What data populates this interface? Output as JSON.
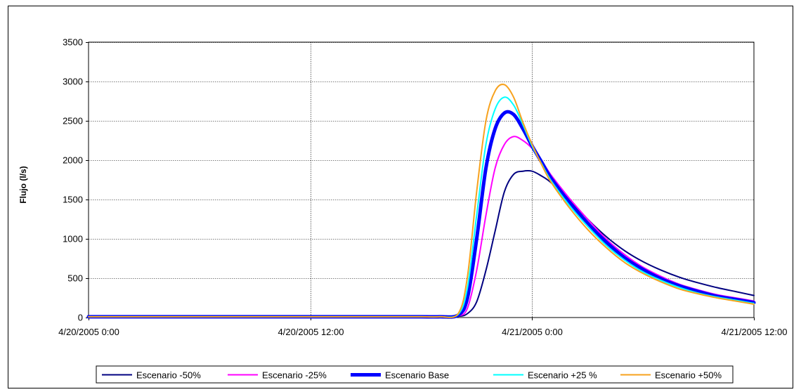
{
  "chart_data": {
    "type": "line",
    "title": "",
    "xlabel": "",
    "ylabel": "Flujo (l/s)",
    "ylim": [
      0,
      3500
    ],
    "yticks": [
      "0",
      "500",
      "1000",
      "1500",
      "2000",
      "2500",
      "3000",
      "3500"
    ],
    "xlim": [
      "4/20/2005 0:00",
      "4/21/2005 12:00"
    ],
    "xticks": [
      "4/20/2005 0:00",
      "4/20/2005 12:00",
      "4/21/2005 0:00",
      "4/21/2005 12:00"
    ],
    "grid": true,
    "legend_position": "bottom",
    "x": [
      "4/20/2005 0:00",
      "4/20/2005 16:00",
      "4/20/2005 18:00",
      "4/20/2005 19:00",
      "4/20/2005 20:00",
      "4/20/2005 20:30",
      "4/20/2005 21:00",
      "4/20/2005 21:30",
      "4/20/2005 22:00",
      "4/20/2005 22:30",
      "4/20/2005 23:00",
      "4/20/2005 23:30",
      "4/21/2005 0:00",
      "4/21/2005 0:30",
      "4/21/2005 1:00",
      "4/21/2005 2:00",
      "4/21/2005 3:00",
      "4/21/2005 4:00",
      "4/21/2005 5:00",
      "4/21/2005 6:00",
      "4/21/2005 7:00",
      "4/21/2005 8:00",
      "4/21/2005 9:00",
      "4/21/2005 10:00",
      "4/21/2005 11:00",
      "4/21/2005 12:00"
    ],
    "series": [
      {
        "name": "Escenario -50%",
        "color": "#000080",
        "width": 2,
        "values": [
          10,
          10,
          10,
          10,
          15,
          50,
          200,
          600,
          1100,
          1600,
          1820,
          1860,
          1860,
          1800,
          1720,
          1500,
          1250,
          1030,
          850,
          710,
          600,
          510,
          440,
          380,
          330,
          280
        ]
      },
      {
        "name": "Escenario -25%",
        "color": "#ff00ff",
        "width": 2,
        "values": [
          10,
          10,
          10,
          10,
          20,
          120,
          600,
          1300,
          1900,
          2200,
          2300,
          2250,
          2150,
          2000,
          1820,
          1520,
          1250,
          1000,
          800,
          640,
          520,
          420,
          350,
          290,
          250,
          210
        ]
      },
      {
        "name": "Escenario Base",
        "color": "#0000ff",
        "width": 5,
        "values": [
          10,
          10,
          10,
          10,
          30,
          250,
          1000,
          1900,
          2400,
          2600,
          2580,
          2400,
          2180,
          1980,
          1780,
          1470,
          1200,
          960,
          760,
          610,
          490,
          400,
          330,
          270,
          230,
          190
        ]
      },
      {
        "name": "Escenario +25 %",
        "color": "#00ffff",
        "width": 2,
        "values": [
          10,
          10,
          10,
          10,
          40,
          380,
          1300,
          2200,
          2650,
          2800,
          2700,
          2450,
          2180,
          1960,
          1750,
          1430,
          1160,
          920,
          730,
          580,
          470,
          380,
          310,
          260,
          220,
          180
        ]
      },
      {
        "name": "Escenario +50%",
        "color": "#f7a21e",
        "width": 2,
        "values": [
          10,
          10,
          10,
          10,
          50,
          520,
          1600,
          2500,
          2880,
          2960,
          2800,
          2480,
          2200,
          1950,
          1730,
          1400,
          1120,
          890,
          700,
          560,
          450,
          360,
          300,
          250,
          210,
          170
        ]
      }
    ]
  }
}
